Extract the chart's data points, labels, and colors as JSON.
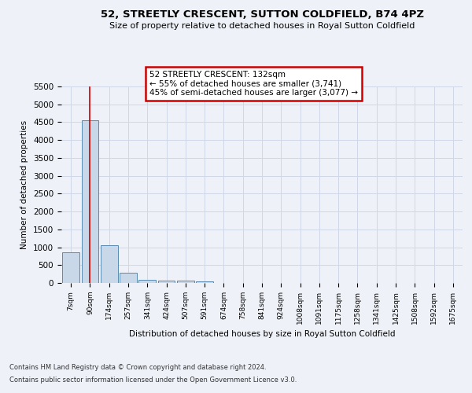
{
  "title_line1": "52, STREETLY CRESCENT, SUTTON COLDFIELD, B74 4PZ",
  "title_line2": "Size of property relative to detached houses in Royal Sutton Coldfield",
  "xlabel": "Distribution of detached houses by size in Royal Sutton Coldfield",
  "ylabel": "Number of detached properties",
  "footnote1": "Contains HM Land Registry data © Crown copyright and database right 2024.",
  "footnote2": "Contains public sector information licensed under the Open Government Licence v3.0.",
  "annotation_line1": "52 STREETLY CRESCENT: 132sqm",
  "annotation_line2": "← 55% of detached houses are smaller (3,741)",
  "annotation_line3": "45% of semi-detached houses are larger (3,077) →",
  "bar_labels": [
    "7sqm",
    "90sqm",
    "174sqm",
    "257sqm",
    "341sqm",
    "424sqm",
    "507sqm",
    "591sqm",
    "674sqm",
    "758sqm",
    "841sqm",
    "924sqm",
    "1008sqm",
    "1091sqm",
    "1175sqm",
    "1258sqm",
    "1341sqm",
    "1425sqm",
    "1508sqm",
    "1592sqm",
    "1675sqm"
  ],
  "bar_values": [
    850,
    4550,
    1050,
    280,
    85,
    75,
    70,
    50,
    0,
    0,
    0,
    0,
    0,
    0,
    0,
    0,
    0,
    0,
    0,
    0,
    0
  ],
  "bar_color": "#c8d8e8",
  "bar_edge_color": "#5a8ab0",
  "red_line_x": 1.0,
  "ylim": [
    0,
    5500
  ],
  "yticks": [
    0,
    500,
    1000,
    1500,
    2000,
    2500,
    3000,
    3500,
    4000,
    4500,
    5000,
    5500
  ],
  "grid_color": "#d0d8e8",
  "annotation_box_color": "#cc0000",
  "background_color": "#eef2f8"
}
